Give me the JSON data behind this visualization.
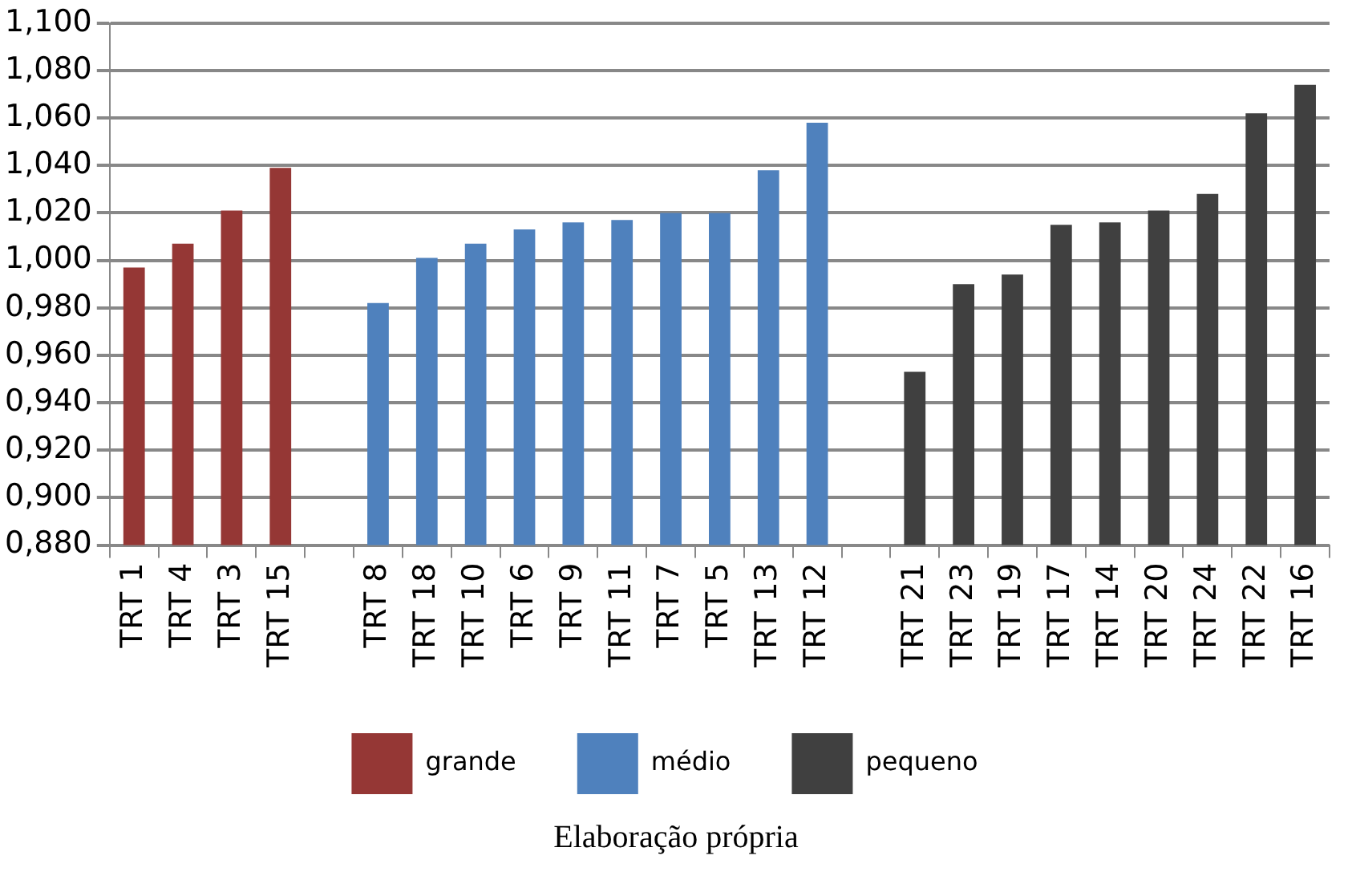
{
  "chart_data": {
    "type": "bar",
    "categories": [
      "TRT 1",
      "TRT 4",
      "TRT 3",
      "TRT 15",
      null,
      "TRT 8",
      "TRT 18",
      "TRT 10",
      "TRT 6",
      "TRT 9",
      "TRT 11",
      "TRT 7",
      "TRT 5",
      "TRT 13",
      "TRT 12",
      null,
      "TRT 21",
      "TRT 23",
      "TRT 19",
      "TRT 17",
      "TRT 14",
      "TRT 20",
      "TRT 24",
      "TRT 22",
      "TRT 16"
    ],
    "series": [
      {
        "name": "grande",
        "color": "#953735",
        "values": [
          0.997,
          1.007,
          1.021,
          1.039,
          null,
          null,
          null,
          null,
          null,
          null,
          null,
          null,
          null,
          null,
          null,
          null,
          null,
          null,
          null,
          null,
          null,
          null,
          null,
          null,
          null
        ]
      },
      {
        "name": "médio",
        "color": "#4f81bd",
        "values": [
          null,
          null,
          null,
          null,
          null,
          0.982,
          1.001,
          1.007,
          1.013,
          1.016,
          1.017,
          1.02,
          1.02,
          1.038,
          1.058,
          null,
          null,
          null,
          null,
          null,
          null,
          null,
          null,
          null,
          null
        ]
      },
      {
        "name": "pequeno",
        "color": "#404040",
        "values": [
          null,
          null,
          null,
          null,
          null,
          null,
          null,
          null,
          null,
          null,
          null,
          null,
          null,
          null,
          null,
          null,
          0.953,
          0.99,
          0.994,
          1.015,
          1.016,
          1.021,
          1.028,
          1.062,
          1.074
        ]
      }
    ],
    "ylim": [
      0.88,
      1.1
    ],
    "yticks": [
      {
        "value": 0.88,
        "label": "0,880"
      },
      {
        "value": 0.9,
        "label": "0,900"
      },
      {
        "value": 0.92,
        "label": "0,920"
      },
      {
        "value": 0.94,
        "label": "0,940"
      },
      {
        "value": 0.96,
        "label": "0,960"
      },
      {
        "value": 0.98,
        "label": "0,980"
      },
      {
        "value": 1.0,
        "label": "1,000"
      },
      {
        "value": 1.02,
        "label": "1,020"
      },
      {
        "value": 1.04,
        "label": "1,040"
      },
      {
        "value": 1.06,
        "label": "1,060"
      },
      {
        "value": 1.08,
        "label": "1,080"
      },
      {
        "value": 1.1,
        "label": "1,100"
      }
    ],
    "grid": "y",
    "legend": "bottom",
    "annotations": [
      "Elaboração própria"
    ]
  }
}
